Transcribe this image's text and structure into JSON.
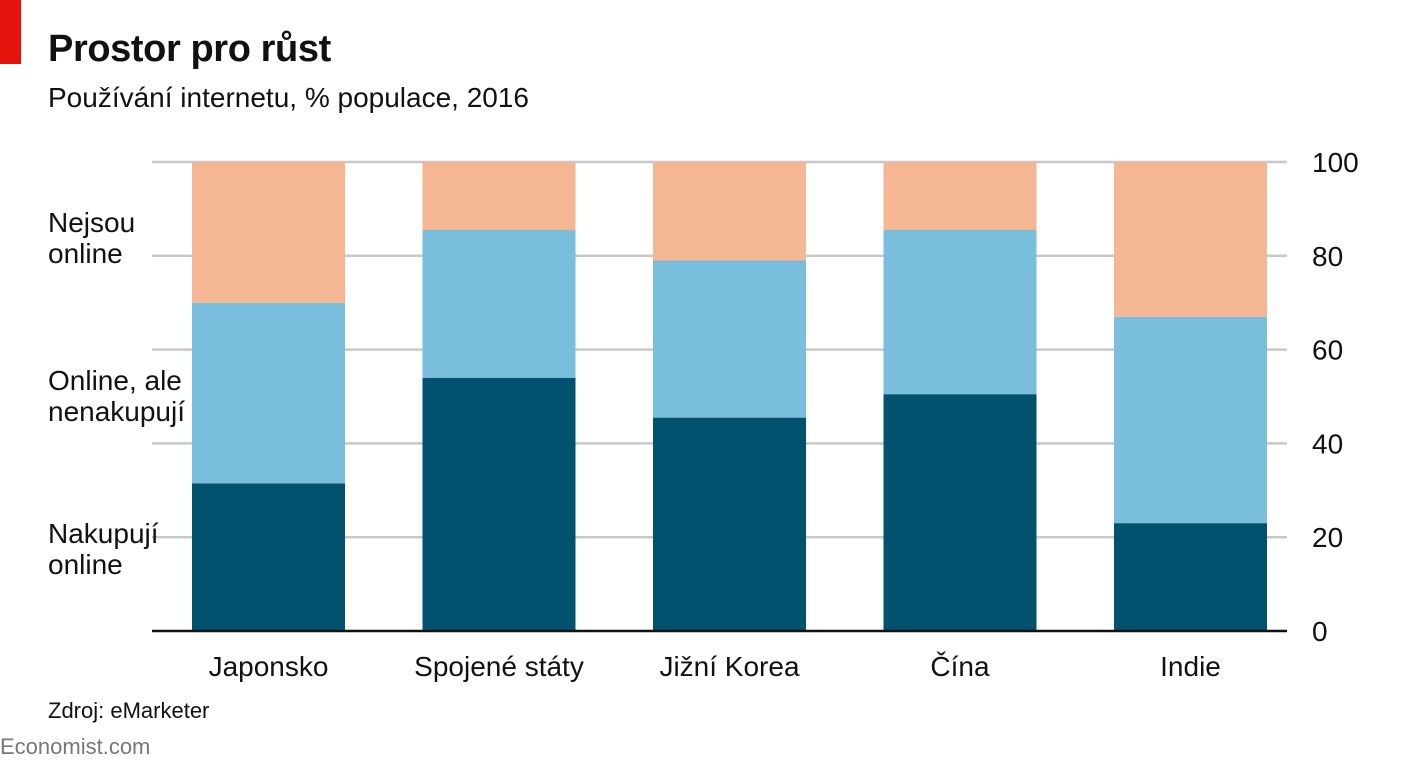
{
  "header": {
    "title": "Prostor pro růst",
    "subtitle": "Používání internetu, % populace, 2016"
  },
  "chart_data": {
    "type": "bar",
    "stacked": true,
    "title": "Prostor pro růst",
    "subtitle": "Používání internetu, % populace, 2016",
    "xlabel": "",
    "ylabel": "",
    "ylim": [
      0,
      100
    ],
    "yticks": [
      0,
      20,
      40,
      60,
      80,
      100
    ],
    "y_axis_side": "right",
    "grid": true,
    "legend_placement": "left",
    "categories": [
      "Japonsko",
      "Spojené státy",
      "Jižní Korea",
      "Čína",
      "Indie"
    ],
    "series": [
      {
        "name": "Nakupují online",
        "color": "#02526f",
        "values": [
          31.5,
          54,
          45.5,
          50.5,
          23
        ]
      },
      {
        "name": "Online, ale nenakupují",
        "color": "#79bedd",
        "values": [
          38.5,
          31.5,
          33.5,
          35,
          44
        ]
      },
      {
        "name": "Nejsou online",
        "color": "#f5b793",
        "values": [
          30,
          14.5,
          21,
          14.5,
          33
        ]
      }
    ]
  },
  "legend": [
    "Nejsou\nonline",
    "Online, ale\nnenakupují",
    "Nakupují\nonline"
  ],
  "footer": {
    "source": "Zdroj: eMarketer",
    "credit": "Economist.com"
  },
  "colors": {
    "accent": "#e3120b",
    "gridline": "#c8c8c8",
    "baseline": "#111111"
  }
}
